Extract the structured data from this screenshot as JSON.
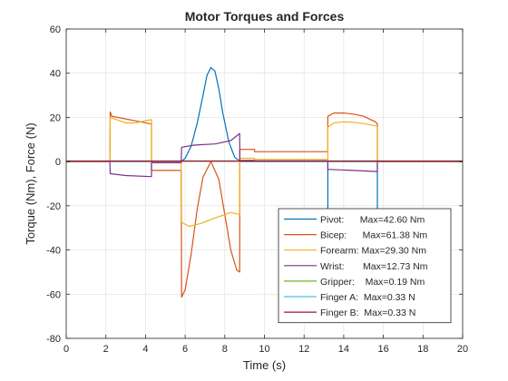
{
  "chart_data": {
    "type": "line",
    "title": "Motor Torques and Forces",
    "xlabel": "Time (s)",
    "ylabel": "Torque (Nm), Force (N)",
    "xlim": [
      0,
      20
    ],
    "ylim": [
      -80,
      60
    ],
    "x_ticks": [
      0,
      2,
      4,
      6,
      8,
      10,
      12,
      14,
      16,
      18,
      20
    ],
    "y_ticks": [
      -80,
      -60,
      -40,
      -20,
      0,
      20,
      40,
      60
    ],
    "x_tick_labels": [
      "0",
      "2",
      "4",
      "6",
      "8",
      "10",
      "12",
      "14",
      "16",
      "18",
      "20"
    ],
    "y_tick_labels": [
      "-80",
      "-60",
      "-40",
      "-20",
      "0",
      "20",
      "40",
      "60"
    ],
    "grid": true,
    "legend_position": "bottom-right",
    "series": [
      {
        "name": "Pivot:      Max=42.60 Nm",
        "color": "#0072BD",
        "x": [
          0,
          5.8,
          6.0,
          6.3,
          6.6,
          6.9,
          7.1,
          7.3,
          7.5,
          7.7,
          7.9,
          8.2,
          8.5,
          8.8,
          13.2,
          13.2,
          13.2,
          15.7,
          15.7,
          15.7,
          20
        ],
        "y": [
          0,
          0,
          1.5,
          7,
          17,
          30,
          39,
          42.6,
          41,
          33,
          22,
          9,
          2,
          0,
          0,
          -28,
          0,
          0,
          -28,
          0,
          0
        ]
      },
      {
        "name": "Bicep:      Max=61.38 Nm",
        "color": "#D95319",
        "x": [
          0,
          2.2,
          2.22,
          2.3,
          4.3,
          4.3,
          5.8,
          5.82,
          6.0,
          6.3,
          6.6,
          6.9,
          7.3,
          7.7,
          8.0,
          8.3,
          8.6,
          8.75,
          8.76,
          9.5,
          9.5,
          13.2,
          13.2,
          13.5,
          14.0,
          14.5,
          15.0,
          15.6,
          15.7,
          15.7,
          20
        ],
        "y": [
          0,
          0,
          22.5,
          20.5,
          17,
          -4,
          -4,
          -61.38,
          -58,
          -42,
          -22,
          -7,
          0,
          -8,
          -24,
          -40,
          -49,
          -50,
          5.5,
          5.5,
          4.5,
          4.5,
          20.5,
          22,
          22,
          21.5,
          20.5,
          18,
          17,
          0,
          0
        ]
      },
      {
        "name": "Forearm: Max=29.30 Nm",
        "color": "#EDB120",
        "x": [
          0,
          2.2,
          2.22,
          3.0,
          3.5,
          4.0,
          4.3,
          4.3,
          5.8,
          5.82,
          6.2,
          6.8,
          7.5,
          8.3,
          8.75,
          8.76,
          9.5,
          9.5,
          13.2,
          13.2,
          13.5,
          14.0,
          14.5,
          15.0,
          15.6,
          15.7,
          15.7,
          20
        ],
        "y": [
          0,
          0,
          20,
          17.5,
          17.5,
          18.5,
          19,
          0,
          0,
          -27.5,
          -29.3,
          -28,
          -25.5,
          -23,
          -24,
          1.5,
          1.5,
          1,
          1,
          15.5,
          17.5,
          18,
          17.8,
          17.2,
          16.2,
          16,
          0,
          0
        ]
      },
      {
        "name": "Wrist:       Max=12.73 Nm",
        "color": "#7E2F8E",
        "x": [
          0,
          2.2,
          2.22,
          3.0,
          4.3,
          4.3,
          5.8,
          5.82,
          6.5,
          7.5,
          8.3,
          8.75,
          8.76,
          9.5,
          9.5,
          13.2,
          13.2,
          14.5,
          15.7,
          15.7,
          20
        ],
        "y": [
          0,
          0,
          -5.5,
          -6.3,
          -6.8,
          -0.5,
          -0.5,
          6.5,
          7.5,
          8,
          9.5,
          12.73,
          0.5,
          0.5,
          0.3,
          0.3,
          -3.5,
          -4,
          -4.5,
          0,
          0
        ]
      },
      {
        "name": "Gripper:    Max=0.19 Nm",
        "color": "#77AC30",
        "x": [
          0,
          20
        ],
        "y": [
          0.1,
          0.1
        ]
      },
      {
        "name": "Finger A:  Max=0.33 N",
        "color": "#4DBEEE",
        "x": [
          0,
          20
        ],
        "y": [
          0.2,
          0.2
        ]
      },
      {
        "name": "Finger B:  Max=0.33 N",
        "color": "#A2142F",
        "x": [
          0,
          20
        ],
        "y": [
          0.25,
          0.25
        ]
      }
    ]
  }
}
